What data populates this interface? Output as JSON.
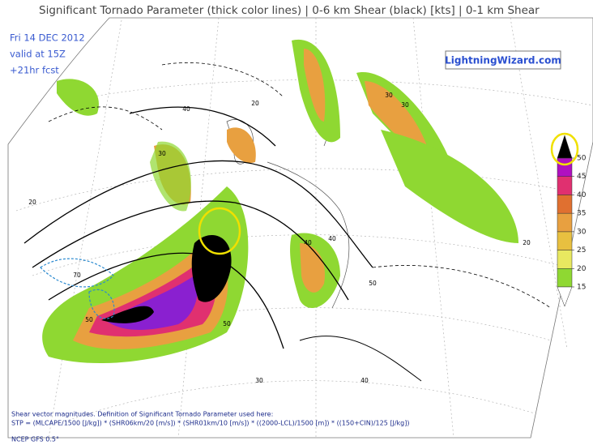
{
  "header": {
    "title": "Significant Tornado Parameter (thick color lines) | 0-6 km Shear (black) [kts] | 0-1 km Shear"
  },
  "info": {
    "date": "Fri 14 DEC 2012",
    "valid": "valid at 15Z",
    "forecast": "+21hr fcst"
  },
  "brand": "LightningWizard.com",
  "colorbar": {
    "ticks": [
      15,
      20,
      25,
      30,
      35,
      40,
      45,
      50
    ],
    "colors": [
      "#8fd832",
      "#e8e860",
      "#e8c040",
      "#e8a040",
      "#e07030",
      "#e03070",
      "#b010c0"
    ],
    "over_color": "#000000",
    "under_color": "#ffffff"
  },
  "contour_labels": [
    20,
    30,
    40,
    50,
    70,
    50,
    40,
    30,
    20,
    40,
    30,
    20,
    40,
    50,
    30
  ],
  "footer": {
    "note": "Shear vector magnitudes. Definition of Significant Tornado Parameter used here:",
    "formula": "STP = (MLCAPE/1500 [J/kg]) * (SHR06km/20 [m/s]) * (SHR01km/10 [m/s]) * ((2000-LCL)/1500 [m]) * ((150+CIN)/125 [J/kg])",
    "model": "NCEP GFS 0.5°"
  }
}
